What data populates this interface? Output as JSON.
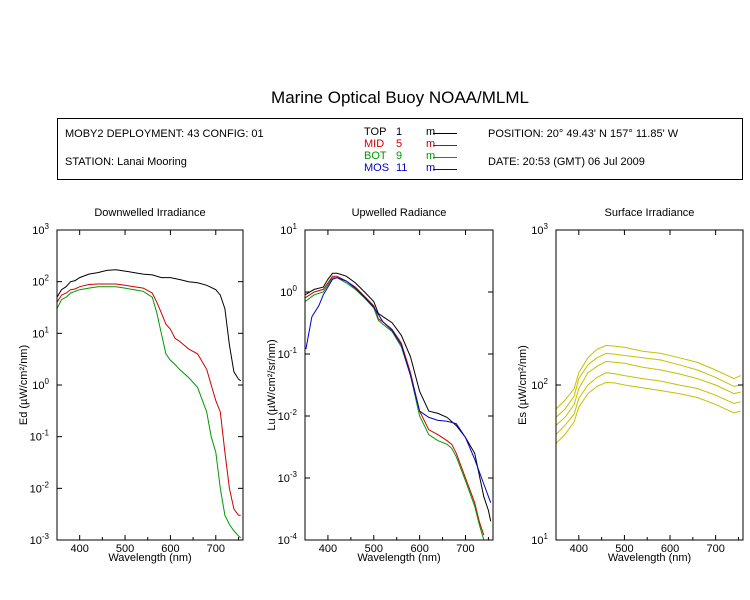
{
  "title": "Marine Optical Buoy NOAA/MLML",
  "info": {
    "deployment": "MOBY2 DEPLOYMENT: 43 CONFIG: 01",
    "station": "STATION: Lanai Mooring",
    "position": "POSITION: 20° 49.43' N   157° 11.85' W",
    "date": "DATE: 20:53 (GMT) 06 Jul 2009"
  },
  "legend": [
    {
      "name": "TOP",
      "depth": "1",
      "unit": "m",
      "color": "#000000"
    },
    {
      "name": "MID",
      "depth": "5",
      "unit": "m",
      "color": "#cc0000"
    },
    {
      "name": "BOT",
      "depth": "9",
      "unit": "m",
      "color": "#009900"
    },
    {
      "name": "MOS",
      "depth": "11",
      "unit": "m",
      "color": "#0000cc"
    }
  ],
  "chart_data": [
    {
      "type": "line",
      "title": "Downwelled Irradiance",
      "xlabel": "Wavelength (nm)",
      "ylabel": "Ed  (µW/cm²/nm)",
      "xlim": [
        350,
        760
      ],
      "ylim": [
        0.001,
        1000
      ],
      "yscale": "log",
      "xticks": [
        400,
        500,
        600,
        700
      ],
      "yticks": [
        {
          "base": "10",
          "exp": "-3",
          "value": 0.001
        },
        {
          "base": "10",
          "exp": "-2",
          "value": 0.01
        },
        {
          "base": "10",
          "exp": "-1",
          "value": 0.1
        },
        {
          "base": "10",
          "exp": "0",
          "value": 1
        },
        {
          "base": "10",
          "exp": "1",
          "value": 10
        },
        {
          "base": "10",
          "exp": "2",
          "value": 100
        },
        {
          "base": "10",
          "exp": "3",
          "value": 1000
        }
      ],
      "series": [
        {
          "name": "TOP",
          "color": "#000000",
          "x": [
            350,
            360,
            370,
            380,
            390,
            400,
            420,
            440,
            460,
            480,
            500,
            520,
            540,
            560,
            580,
            600,
            620,
            640,
            660,
            680,
            700,
            710,
            720,
            730,
            740,
            750,
            755
          ],
          "y": [
            50,
            70,
            80,
            100,
            105,
            120,
            140,
            150,
            165,
            170,
            160,
            150,
            140,
            135,
            120,
            120,
            110,
            100,
            95,
            85,
            70,
            55,
            30,
            6,
            1.8,
            1.3,
            1.2
          ]
        },
        {
          "name": "MID",
          "color": "#cc0000",
          "x": [
            350,
            360,
            370,
            380,
            390,
            400,
            420,
            440,
            460,
            480,
            500,
            520,
            540,
            560,
            570,
            580,
            590,
            600,
            610,
            620,
            640,
            660,
            680,
            690,
            700,
            710,
            720,
            730,
            740,
            750,
            755
          ],
          "y": [
            40,
            55,
            60,
            70,
            72,
            80,
            88,
            90,
            90,
            90,
            85,
            80,
            75,
            60,
            40,
            25,
            15,
            12,
            8,
            7,
            5,
            4,
            2,
            1,
            0.5,
            0.3,
            0.05,
            0.01,
            0.004,
            0.003,
            0.003
          ]
        },
        {
          "name": "BOT",
          "color": "#009900",
          "x": [
            350,
            360,
            370,
            380,
            390,
            400,
            420,
            440,
            460,
            480,
            500,
            520,
            540,
            560,
            570,
            580,
            590,
            600,
            610,
            620,
            640,
            660,
            680,
            690,
            700,
            710,
            720,
            730,
            740,
            750,
            755
          ],
          "y": [
            30,
            45,
            50,
            60,
            65,
            70,
            75,
            80,
            80,
            80,
            75,
            70,
            65,
            50,
            25,
            10,
            4,
            3,
            2.5,
            2,
            1.4,
            0.9,
            0.3,
            0.1,
            0.05,
            0.01,
            0.003,
            0.002,
            0.0015,
            0.0012,
            0.0011
          ]
        }
      ]
    },
    {
      "type": "line",
      "title": "Upwelled Radiance",
      "xlabel": "Wavelength (nm)",
      "ylabel": "Lu  (µW/cm²/sr/nm)",
      "xlim": [
        350,
        760
      ],
      "ylim": [
        0.0001,
        10
      ],
      "yscale": "log",
      "xticks": [
        400,
        500,
        600,
        700
      ],
      "yticks": [
        {
          "base": "10",
          "exp": "-4",
          "value": 0.0001
        },
        {
          "base": "10",
          "exp": "-3",
          "value": 0.001
        },
        {
          "base": "10",
          "exp": "-2",
          "value": 0.01
        },
        {
          "base": "10",
          "exp": "-1",
          "value": 0.1
        },
        {
          "base": "10",
          "exp": "0",
          "value": 1
        },
        {
          "base": "10",
          "exp": "1",
          "value": 10
        }
      ],
      "series": [
        {
          "name": "TOP",
          "color": "#000000",
          "x": [
            350,
            370,
            390,
            400,
            410,
            420,
            440,
            460,
            480,
            500,
            510,
            520,
            540,
            560,
            580,
            600,
            620,
            640,
            660,
            680,
            700,
            720,
            740,
            750,
            755
          ],
          "y": [
            0.9,
            1.1,
            1.2,
            1.6,
            2.0,
            2.0,
            1.8,
            1.4,
            1.0,
            0.7,
            0.45,
            0.4,
            0.32,
            0.2,
            0.09,
            0.025,
            0.012,
            0.011,
            0.0095,
            0.007,
            0.0045,
            0.0025,
            0.0005,
            0.0003,
            0.0002
          ]
        },
        {
          "name": "MID",
          "color": "#cc0000",
          "x": [
            350,
            370,
            390,
            400,
            410,
            420,
            440,
            460,
            480,
            500,
            510,
            520,
            540,
            560,
            580,
            600,
            620,
            640,
            660,
            670,
            680,
            700,
            720,
            730,
            740
          ],
          "y": [
            0.8,
            1.0,
            1.1,
            1.4,
            1.8,
            1.8,
            1.5,
            1.2,
            0.85,
            0.6,
            0.37,
            0.33,
            0.25,
            0.15,
            0.05,
            0.012,
            0.006,
            0.005,
            0.004,
            0.0035,
            0.0025,
            0.001,
            0.0004,
            0.0002,
            0.00012
          ]
        },
        {
          "name": "BOT",
          "color": "#009900",
          "x": [
            350,
            370,
            390,
            400,
            410,
            420,
            440,
            460,
            480,
            500,
            510,
            520,
            540,
            560,
            580,
            600,
            620,
            640,
            660,
            670,
            680,
            700,
            720,
            730,
            740
          ],
          "y": [
            0.7,
            0.9,
            1.0,
            1.3,
            1.7,
            1.7,
            1.4,
            1.1,
            0.8,
            0.55,
            0.35,
            0.3,
            0.23,
            0.13,
            0.045,
            0.01,
            0.005,
            0.004,
            0.0035,
            0.003,
            0.0022,
            0.0009,
            0.00035,
            0.00018,
            0.0001
          ]
        },
        {
          "name": "MOS",
          "color": "#0000cc",
          "x": [
            352,
            365,
            380,
            390,
            400,
            410,
            420,
            440,
            460,
            480,
            500,
            520,
            540,
            560,
            580,
            600,
            620,
            640,
            660,
            680,
            700,
            720,
            740,
            755
          ],
          "y": [
            0.12,
            0.4,
            0.6,
            0.9,
            1.2,
            1.6,
            1.7,
            1.5,
            1.15,
            0.82,
            0.57,
            0.33,
            0.24,
            0.14,
            0.045,
            0.012,
            0.0095,
            0.0085,
            0.0082,
            0.0075,
            0.0045,
            0.002,
            0.0008,
            0.0004
          ],
          "segments_note": ""
        }
      ]
    },
    {
      "type": "line",
      "title": "Surface Irradiance",
      "xlabel": "Wavelength (nm)",
      "ylabel": "Es  (µW/cm²/nm)",
      "xlim": [
        350,
        760
      ],
      "ylim": [
        10,
        1000
      ],
      "yscale": "log",
      "xticks": [
        400,
        500,
        600,
        700
      ],
      "yticks": [
        {
          "base": "10",
          "exp": "1",
          "value": 10
        },
        {
          "base": "10",
          "exp": "2",
          "value": 100
        },
        {
          "base": "10",
          "exp": "3",
          "value": 1000
        }
      ],
      "series": [
        {
          "name": "",
          "color": "#c8c000",
          "x": [
            350,
            370,
            390,
            400,
            420,
            440,
            460,
            480,
            500,
            540,
            580,
            620,
            660,
            700,
            740,
            755
          ],
          "y": [
            70,
            80,
            95,
            120,
            150,
            170,
            180,
            178,
            175,
            165,
            160,
            150,
            140,
            125,
            110,
            115
          ]
        },
        {
          "name": "",
          "color": "#c8c000",
          "x": [
            350,
            370,
            390,
            400,
            420,
            440,
            460,
            480,
            500,
            540,
            580,
            620,
            660,
            700,
            740,
            755
          ],
          "y": [
            62,
            70,
            85,
            110,
            135,
            150,
            160,
            158,
            155,
            150,
            145,
            135,
            125,
            112,
            98,
            100
          ]
        },
        {
          "name": "",
          "color": "#c8c000",
          "x": [
            350,
            370,
            390,
            400,
            420,
            440,
            460,
            480,
            500,
            540,
            580,
            620,
            660,
            700,
            740,
            755
          ],
          "y": [
            55,
            62,
            75,
            95,
            120,
            132,
            142,
            140,
            138,
            130,
            125,
            118,
            110,
            100,
            88,
            90
          ]
        },
        {
          "name": "",
          "color": "#c8c000",
          "x": [
            350,
            370,
            390,
            400,
            420,
            440,
            460,
            480,
            500,
            540,
            580,
            620,
            660,
            700,
            740,
            755
          ],
          "y": [
            48,
            55,
            65,
            82,
            100,
            112,
            120,
            118,
            115,
            110,
            106,
            100,
            95,
            86,
            76,
            78
          ]
        },
        {
          "name": "",
          "color": "#c8c000",
          "x": [
            350,
            370,
            390,
            400,
            420,
            440,
            460,
            480,
            500,
            540,
            580,
            620,
            660,
            700,
            740,
            755
          ],
          "y": [
            42,
            48,
            58,
            72,
            88,
            98,
            104,
            103,
            100,
            96,
            92,
            88,
            83,
            75,
            66,
            68
          ]
        }
      ]
    }
  ]
}
